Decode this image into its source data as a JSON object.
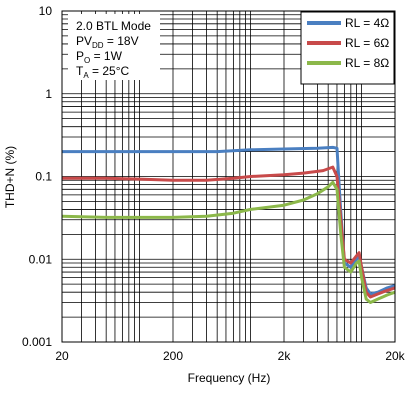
{
  "chart_data": {
    "type": "line",
    "xlabel": "Frequency (Hz)",
    "ylabel": "THD+N (%)",
    "xscale": "log",
    "yscale": "log",
    "xlim": [
      20,
      20000
    ],
    "ylim": [
      0.001,
      10
    ],
    "x_tick_labels": [
      {
        "value": 20,
        "label": "20"
      },
      {
        "value": 200,
        "label": "200"
      },
      {
        "value": 2000,
        "label": "2k"
      },
      {
        "value": 20000,
        "label": "20k"
      }
    ],
    "y_tick_labels": [
      {
        "value": 10,
        "label": "10"
      },
      {
        "value": 1,
        "label": "1"
      },
      {
        "value": 0.1,
        "label": "0.1"
      },
      {
        "value": 0.01,
        "label": "0.01"
      },
      {
        "value": 0.001,
        "label": "0.001"
      }
    ],
    "grid": true,
    "legend_position": "top-right",
    "conditions": {
      "mode": "2.0 BTL Mode",
      "pvdd_main": "PV",
      "pvdd_sub": "DD",
      "pvdd_value": " = 18V",
      "po_main": "P",
      "po_sub": "O",
      "po_value": " = 1W",
      "ta_main": "T",
      "ta_sub": "A",
      "ta_value": " = 25°C"
    },
    "series": [
      {
        "name": "RL = 4Ω",
        "color": "#4a7fc1",
        "points": [
          [
            20,
            0.2
          ],
          [
            50,
            0.2
          ],
          [
            100,
            0.2
          ],
          [
            200,
            0.2
          ],
          [
            500,
            0.2
          ],
          [
            1000,
            0.21
          ],
          [
            2000,
            0.215
          ],
          [
            4000,
            0.22
          ],
          [
            5500,
            0.225
          ],
          [
            6000,
            0.22
          ],
          [
            6400,
            0.05
          ],
          [
            7000,
            0.009
          ],
          [
            8000,
            0.008
          ],
          [
            9000,
            0.01
          ],
          [
            9500,
            0.011
          ],
          [
            10000,
            0.008
          ],
          [
            11000,
            0.0045
          ],
          [
            12000,
            0.0038
          ],
          [
            14000,
            0.004
          ],
          [
            17000,
            0.0045
          ],
          [
            20000,
            0.0048
          ]
        ]
      },
      {
        "name": "RL = 6Ω",
        "color": "#c84a4a",
        "points": [
          [
            20,
            0.095
          ],
          [
            50,
            0.095
          ],
          [
            100,
            0.093
          ],
          [
            200,
            0.09
          ],
          [
            400,
            0.09
          ],
          [
            700,
            0.095
          ],
          [
            1000,
            0.1
          ],
          [
            2000,
            0.105
          ],
          [
            3000,
            0.11
          ],
          [
            4500,
            0.118
          ],
          [
            5500,
            0.13
          ],
          [
            6000,
            0.1
          ],
          [
            6500,
            0.03
          ],
          [
            7000,
            0.01
          ],
          [
            8000,
            0.009
          ],
          [
            9000,
            0.011
          ],
          [
            9500,
            0.012
          ],
          [
            10000,
            0.008
          ],
          [
            11000,
            0.004
          ],
          [
            12000,
            0.0035
          ],
          [
            14000,
            0.0038
          ],
          [
            17000,
            0.0042
          ],
          [
            20000,
            0.0045
          ]
        ]
      },
      {
        "name": "RL = 8Ω",
        "color": "#8cb84a",
        "points": [
          [
            20,
            0.033
          ],
          [
            50,
            0.032
          ],
          [
            100,
            0.032
          ],
          [
            200,
            0.032
          ],
          [
            400,
            0.033
          ],
          [
            700,
            0.036
          ],
          [
            1000,
            0.04
          ],
          [
            2000,
            0.045
          ],
          [
            3000,
            0.052
          ],
          [
            4000,
            0.062
          ],
          [
            5000,
            0.075
          ],
          [
            5500,
            0.085
          ],
          [
            6000,
            0.07
          ],
          [
            6500,
            0.02
          ],
          [
            7000,
            0.008
          ],
          [
            8000,
            0.007
          ],
          [
            9000,
            0.009
          ],
          [
            9500,
            0.0095
          ],
          [
            10000,
            0.006
          ],
          [
            11000,
            0.0033
          ],
          [
            12000,
            0.003
          ],
          [
            14000,
            0.0033
          ],
          [
            17000,
            0.0037
          ],
          [
            20000,
            0.004
          ]
        ]
      }
    ]
  }
}
